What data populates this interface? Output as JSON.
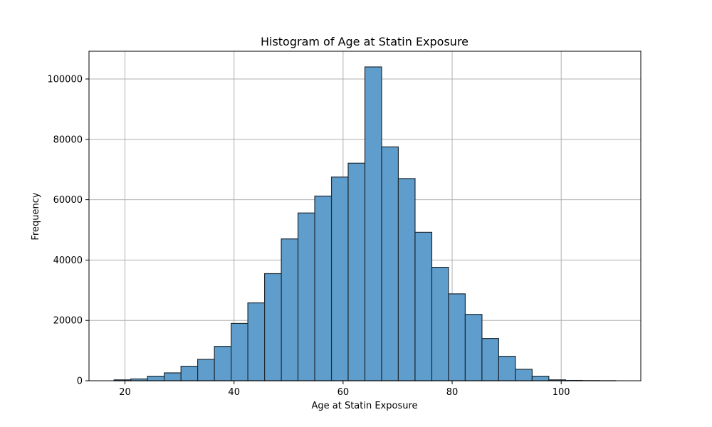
{
  "chart_data": {
    "type": "bar",
    "title": "Histogram of Age at Statin Exposure",
    "xlabel": "Age at Statin Exposure",
    "ylabel": "Frequency",
    "xlim": [
      13.4,
      114.6
    ],
    "ylim": [
      0,
      109200
    ],
    "xticks": [
      20,
      40,
      60,
      80,
      100
    ],
    "yticks": [
      0,
      20000,
      40000,
      60000,
      80000,
      100000
    ],
    "grid": true,
    "bin_edges": [
      18,
      21.07,
      24.13,
      27.2,
      30.27,
      33.33,
      36.4,
      39.47,
      42.53,
      45.6,
      48.67,
      51.73,
      54.8,
      57.87,
      60.93,
      64,
      67.07,
      70.13,
      73.2,
      76.27,
      79.33,
      82.4,
      85.47,
      88.53,
      91.6,
      94.67,
      97.73,
      100.8,
      103.87,
      106.93,
      110
    ],
    "values": [
      300,
      600,
      1500,
      2600,
      4800,
      7100,
      11400,
      19000,
      25800,
      35500,
      47000,
      55600,
      61200,
      67500,
      72100,
      104000,
      77500,
      67000,
      49200,
      37600,
      28800,
      22000,
      14000,
      8100,
      3800,
      1500,
      300,
      100,
      50,
      20
    ],
    "bar_color": "#5f9ecc",
    "edge_color": "#1f2a33"
  }
}
